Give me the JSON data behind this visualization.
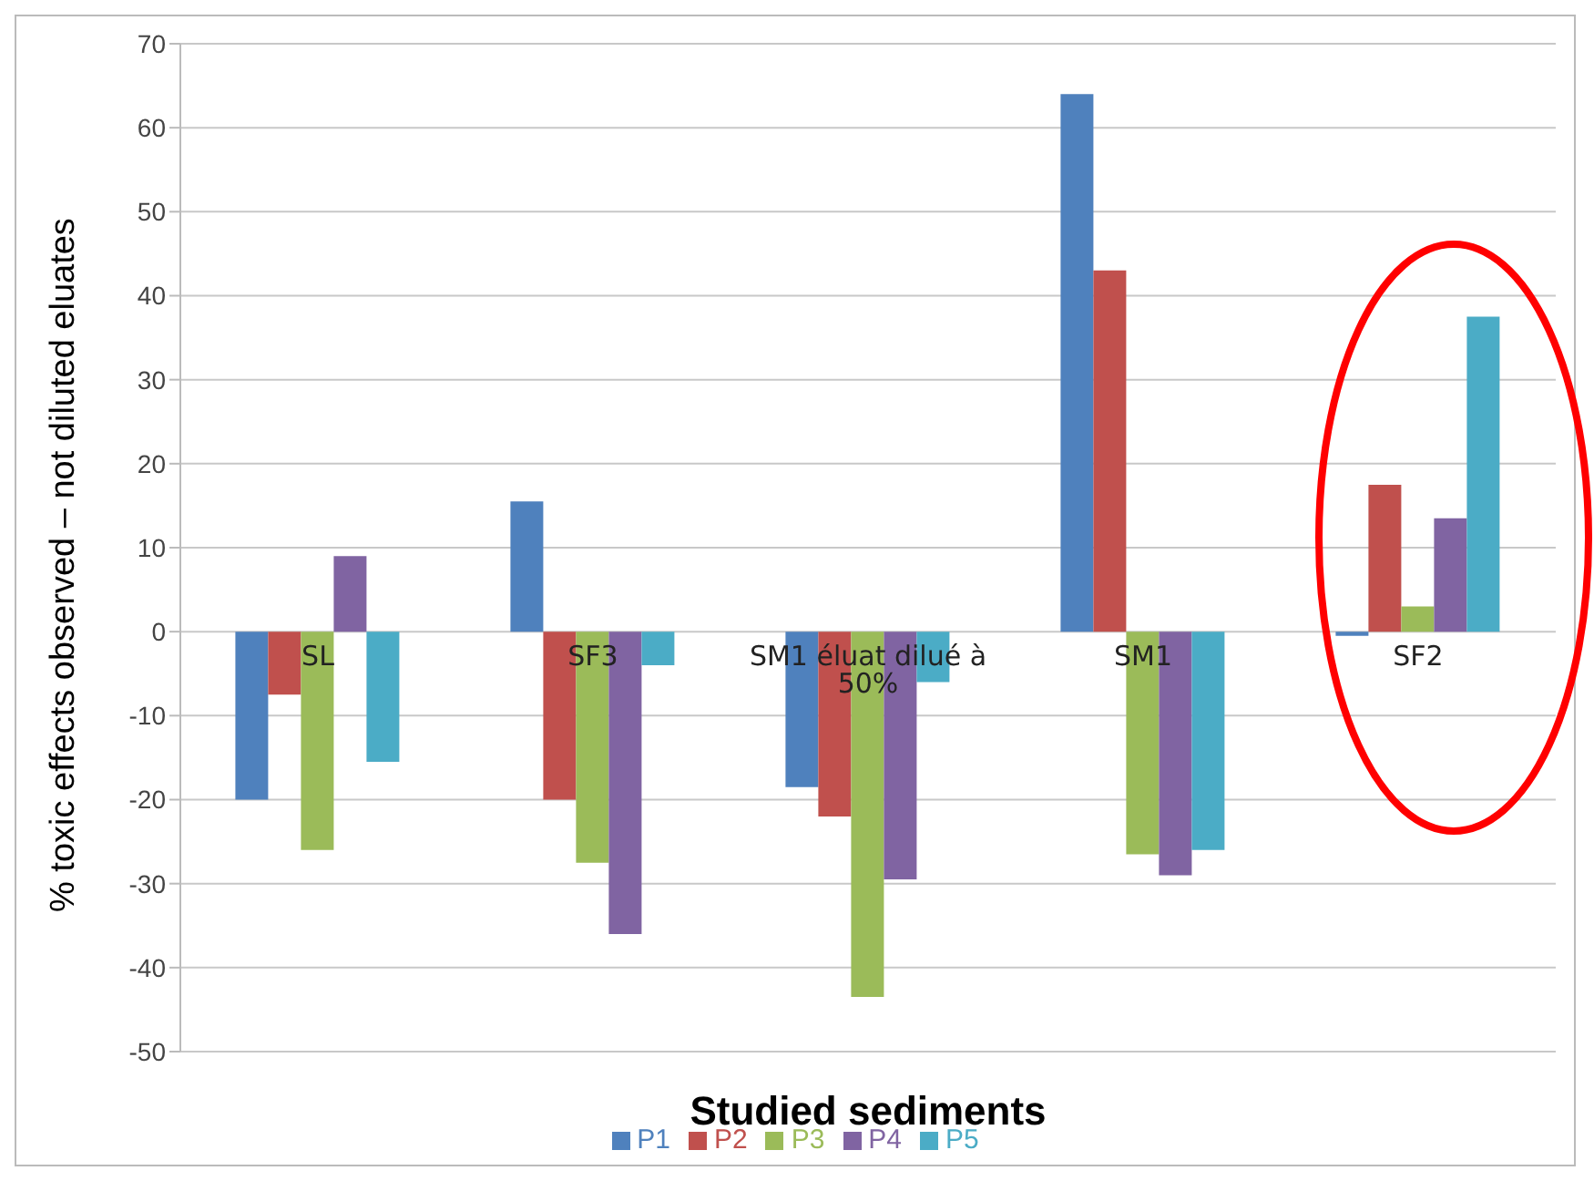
{
  "chart_data": {
    "type": "bar",
    "xlabel": "Studied sediments",
    "ylabel": "% toxic effects observed – not diluted eluates",
    "categories": [
      "SL",
      "SF3",
      "SM1 éluat dilué à 50%",
      "SM1",
      "SF2"
    ],
    "series": [
      {
        "name": "P1",
        "color": "#4f81bd",
        "values": [
          -20,
          15.5,
          -18.5,
          64,
          -0.5
        ]
      },
      {
        "name": "P2",
        "color": "#c0504d",
        "values": [
          -7.5,
          -20,
          -22,
          43,
          17.5
        ]
      },
      {
        "name": "P3",
        "color": "#9bbb59",
        "values": [
          -26,
          -27.5,
          -43.5,
          -26.5,
          3
        ]
      },
      {
        "name": "P4",
        "color": "#8064a2",
        "values": [
          9,
          -36,
          -29.5,
          -29,
          13.5
        ]
      },
      {
        "name": "P5",
        "color": "#4bacc6",
        "values": [
          -15.5,
          -4,
          -6,
          -26,
          37.5
        ]
      }
    ],
    "ylim": [
      -50,
      70
    ],
    "yticks": [
      -50,
      -40,
      -30,
      -20,
      -10,
      0,
      10,
      20,
      30,
      40,
      50,
      60,
      70
    ],
    "grid": "y",
    "legend": "bottom"
  }
}
